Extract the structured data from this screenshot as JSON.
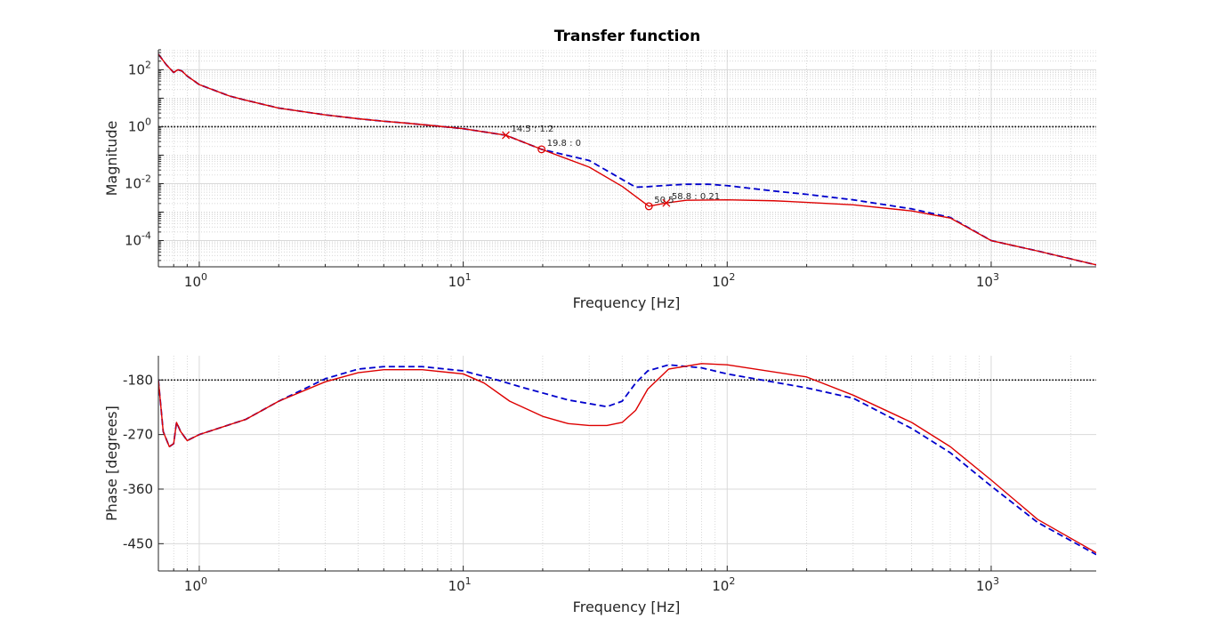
{
  "chart_data": {
    "title": "Transfer function",
    "xscale": "log",
    "xlim": [
      0.7,
      2500
    ],
    "x_ticks": [
      1,
      10,
      100,
      1000
    ],
    "grid": true,
    "panels": [
      {
        "type": "line",
        "ylabel": "Magnitude",
        "xlabel": "Frequency [Hz]",
        "yscale": "log",
        "ylim": [
          1.2e-05,
          500
        ],
        "y_ticks": [
          {
            "value": 0.0001,
            "base": "10",
            "exp": "-4"
          },
          {
            "value": 0.01,
            "base": "10",
            "exp": "-2"
          },
          {
            "value": 1,
            "base": "10",
            "exp": "0"
          },
          {
            "value": 100,
            "base": "10",
            "exp": "2"
          }
        ],
        "x_tick_labels": [
          {
            "base": "10",
            "exp": "0"
          },
          {
            "base": "10",
            "exp": "1"
          },
          {
            "base": "10",
            "exp": "2"
          },
          {
            "base": "10",
            "exp": "3"
          }
        ],
        "reference_line": {
          "value": 1,
          "style": "dotted"
        },
        "series": [
          {
            "style": "dashed",
            "color": "#0000cc",
            "points": [
              [
                0.7,
                350
              ],
              [
                0.75,
                150
              ],
              [
                0.8,
                80
              ],
              [
                0.83,
                100
              ],
              [
                0.86,
                90
              ],
              [
                0.9,
                60
              ],
              [
                1,
                30
              ],
              [
                1.3,
                12
              ],
              [
                1.5,
                8.5
              ],
              [
                2,
                4.5
              ],
              [
                3,
                2.6
              ],
              [
                4,
                1.9
              ],
              [
                5,
                1.55
              ],
              [
                6,
                1.35
              ],
              [
                8,
                1.05
              ],
              [
                10,
                0.85
              ],
              [
                14.5,
                0.5
              ],
              [
                19.8,
                0.16
              ],
              [
                30,
                0.065
              ],
              [
                45,
                0.0075
              ],
              [
                50,
                0.0078
              ],
              [
                60,
                0.0088
              ],
              [
                70,
                0.0095
              ],
              [
                85,
                0.0095
              ],
              [
                100,
                0.0085
              ],
              [
                150,
                0.0055
              ],
              [
                200,
                0.0042
              ],
              [
                300,
                0.0027
              ],
              [
                500,
                0.0013
              ],
              [
                700,
                0.00065
              ],
              [
                1000,
                0.0001
              ],
              [
                1500,
                4.3e-05
              ],
              [
                2500,
                1.4e-05
              ]
            ]
          },
          {
            "style": "solid",
            "color": "#dd0000",
            "points": [
              [
                0.7,
                350
              ],
              [
                0.75,
                150
              ],
              [
                0.8,
                80
              ],
              [
                0.83,
                100
              ],
              [
                0.86,
                90
              ],
              [
                0.9,
                60
              ],
              [
                1,
                30
              ],
              [
                1.3,
                12
              ],
              [
                1.5,
                8.5
              ],
              [
                2,
                4.5
              ],
              [
                3,
                2.6
              ],
              [
                4,
                1.9
              ],
              [
                5,
                1.55
              ],
              [
                6,
                1.35
              ],
              [
                8,
                1.05
              ],
              [
                10,
                0.85
              ],
              [
                14.5,
                0.5
              ],
              [
                19.8,
                0.16
              ],
              [
                30,
                0.038
              ],
              [
                40,
                0.008
              ],
              [
                50.5,
                0.0016
              ],
              [
                58.8,
                0.0021
              ],
              [
                70,
                0.0026
              ],
              [
                100,
                0.0027
              ],
              [
                150,
                0.0025
              ],
              [
                200,
                0.0022
              ],
              [
                300,
                0.0018
              ],
              [
                500,
                0.0011
              ],
              [
                700,
                0.00062
              ],
              [
                1000,
                0.0001
              ],
              [
                1500,
                4.3e-05
              ],
              [
                2500,
                1.4e-05
              ]
            ]
          }
        ],
        "markers": [
          {
            "x": 14.5,
            "y": 0.5,
            "symbol": "x",
            "label": "14.5 : 1.2"
          },
          {
            "x": 19.8,
            "y": 0.16,
            "symbol": "o",
            "label": "19.8 : 0"
          },
          {
            "x": 50.5,
            "y": 0.0016,
            "symbol": "o",
            "label": "50.5"
          },
          {
            "x": 58.8,
            "y": 0.0021,
            "symbol": "x",
            "label": "58.8 : 0.21"
          }
        ]
      },
      {
        "type": "line",
        "ylabel": "Phase [degrees]",
        "xlabel": "Frequency [Hz]",
        "yscale": "linear",
        "ylim": [
          -495,
          -140
        ],
        "y_ticks": [
          {
            "value": -450,
            "label": "-450"
          },
          {
            "value": -360,
            "label": "-360"
          },
          {
            "value": -270,
            "label": "-270"
          },
          {
            "value": -180,
            "label": "-180"
          }
        ],
        "x_tick_labels": [
          {
            "base": "10",
            "exp": "0"
          },
          {
            "base": "10",
            "exp": "1"
          },
          {
            "base": "10",
            "exp": "2"
          },
          {
            "base": "10",
            "exp": "3"
          }
        ],
        "reference_line": {
          "value": -180,
          "style": "dotted"
        },
        "series": [
          {
            "style": "dashed",
            "color": "#0000cc",
            "points": [
              [
                0.7,
                -180
              ],
              [
                0.73,
                -265
              ],
              [
                0.77,
                -290
              ],
              [
                0.8,
                -285
              ],
              [
                0.82,
                -250
              ],
              [
                0.85,
                -265
              ],
              [
                0.9,
                -280
              ],
              [
                1,
                -270
              ],
              [
                1.5,
                -245
              ],
              [
                2,
                -215
              ],
              [
                3,
                -178
              ],
              [
                4,
                -162
              ],
              [
                5,
                -158
              ],
              [
                7,
                -158
              ],
              [
                10,
                -165
              ],
              [
                13,
                -178
              ],
              [
                17,
                -193
              ],
              [
                25,
                -213
              ],
              [
                35,
                -224
              ],
              [
                40,
                -215
              ],
              [
                45,
                -185
              ],
              [
                50,
                -165
              ],
              [
                60,
                -155
              ],
              [
                80,
                -160
              ],
              [
                100,
                -170
              ],
              [
                200,
                -193
              ],
              [
                300,
                -210
              ],
              [
                500,
                -260
              ],
              [
                700,
                -300
              ],
              [
                1000,
                -355
              ],
              [
                1500,
                -415
              ],
              [
                2500,
                -468
              ]
            ]
          },
          {
            "style": "solid",
            "color": "#dd0000",
            "points": [
              [
                0.7,
                -180
              ],
              [
                0.73,
                -265
              ],
              [
                0.77,
                -290
              ],
              [
                0.8,
                -285
              ],
              [
                0.82,
                -250
              ],
              [
                0.85,
                -265
              ],
              [
                0.9,
                -280
              ],
              [
                1,
                -270
              ],
              [
                1.5,
                -245
              ],
              [
                2,
                -215
              ],
              [
                3,
                -183
              ],
              [
                4,
                -168
              ],
              [
                5,
                -163
              ],
              [
                7,
                -163
              ],
              [
                10,
                -170
              ],
              [
                12,
                -185
              ],
              [
                15,
                -215
              ],
              [
                20,
                -240
              ],
              [
                25,
                -252
              ],
              [
                30,
                -255
              ],
              [
                35,
                -255
              ],
              [
                40,
                -250
              ],
              [
                45,
                -230
              ],
              [
                50,
                -195
              ],
              [
                60,
                -162
              ],
              [
                80,
                -153
              ],
              [
                100,
                -155
              ],
              [
                200,
                -175
              ],
              [
                300,
                -205
              ],
              [
                500,
                -250
              ],
              [
                700,
                -290
              ],
              [
                1000,
                -345
              ],
              [
                1500,
                -410
              ],
              [
                2500,
                -465
              ]
            ]
          }
        ]
      }
    ]
  }
}
